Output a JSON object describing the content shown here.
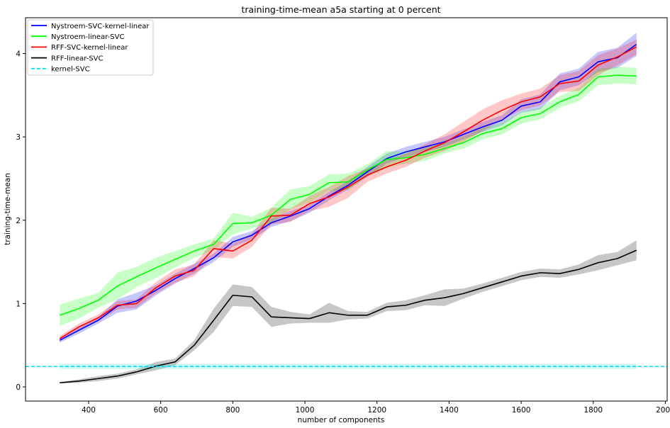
{
  "chart_data": {
    "type": "line",
    "title": "training-time-mean a5a starting at 0 percent",
    "xlabel": "number of components",
    "ylabel": "training-time-mean",
    "xlim": [
      225,
      2005
    ],
    "ylim": [
      -0.17,
      4.43
    ],
    "xticks": [
      400,
      600,
      800,
      1000,
      1200,
      1400,
      1600,
      1800,
      2000
    ],
    "yticks": [
      0,
      1,
      2,
      3,
      4
    ],
    "grid": false,
    "legend_position": "top-left",
    "x": [
      320,
      373,
      427,
      480,
      533,
      587,
      640,
      693,
      747,
      800,
      853,
      907,
      960,
      1013,
      1067,
      1120,
      1173,
      1227,
      1280,
      1333,
      1387,
      1440,
      1493,
      1547,
      1600,
      1653,
      1707,
      1760,
      1813,
      1867,
      1920
    ],
    "series": [
      {
        "name": "Nystroem-SVC-kernel-linear",
        "color": "#0000ff",
        "dashed": false,
        "values": [
          0.56,
          0.68,
          0.8,
          0.97,
          1.03,
          1.16,
          1.3,
          1.42,
          1.55,
          1.74,
          1.82,
          1.97,
          2.05,
          2.14,
          2.29,
          2.42,
          2.58,
          2.74,
          2.82,
          2.88,
          2.94,
          3.03,
          3.12,
          3.2,
          3.37,
          3.42,
          3.66,
          3.72,
          3.9,
          3.95,
          4.11
        ],
        "band": [
          0.03,
          0.04,
          0.04,
          0.08,
          0.1,
          0.06,
          0.06,
          0.06,
          0.05,
          0.06,
          0.05,
          0.05,
          0.06,
          0.05,
          0.05,
          0.05,
          0.06,
          0.06,
          0.06,
          0.06,
          0.06,
          0.06,
          0.06,
          0.06,
          0.08,
          0.09,
          0.1,
          0.1,
          0.12,
          0.12,
          0.14
        ]
      },
      {
        "name": "Nystroem-linear-SVC",
        "color": "#00ff00",
        "dashed": false,
        "values": [
          0.86,
          0.94,
          1.04,
          1.21,
          1.32,
          1.43,
          1.53,
          1.63,
          1.71,
          1.96,
          1.97,
          2.06,
          2.25,
          2.31,
          2.45,
          2.46,
          2.6,
          2.73,
          2.75,
          2.79,
          2.86,
          2.93,
          3.04,
          3.1,
          3.23,
          3.28,
          3.42,
          3.51,
          3.72,
          3.74,
          3.73
        ],
        "band": [
          0.13,
          0.12,
          0.09,
          0.16,
          0.12,
          0.12,
          0.1,
          0.08,
          0.07,
          0.13,
          0.07,
          0.09,
          0.12,
          0.1,
          0.1,
          0.1,
          0.07,
          0.1,
          0.07,
          0.08,
          0.06,
          0.07,
          0.07,
          0.07,
          0.07,
          0.07,
          0.07,
          0.08,
          0.1,
          0.1,
          0.1
        ]
      },
      {
        "name": "RFF-SVC-kernel-linear",
        "color": "#ff0000",
        "dashed": false,
        "values": [
          0.58,
          0.72,
          0.83,
          0.98,
          1.0,
          1.19,
          1.33,
          1.4,
          1.66,
          1.63,
          1.76,
          2.05,
          2.06,
          2.2,
          2.28,
          2.4,
          2.54,
          2.64,
          2.72,
          2.83,
          2.93,
          3.06,
          3.2,
          3.32,
          3.42,
          3.48,
          3.64,
          3.67,
          3.86,
          3.96,
          4.08
        ],
        "band": [
          0.03,
          0.04,
          0.04,
          0.05,
          0.05,
          0.07,
          0.08,
          0.07,
          0.1,
          0.09,
          0.08,
          0.1,
          0.08,
          0.09,
          0.12,
          0.13,
          0.08,
          0.08,
          0.08,
          0.08,
          0.1,
          0.12,
          0.13,
          0.12,
          0.1,
          0.1,
          0.1,
          0.12,
          0.12,
          0.1,
          0.09
        ]
      },
      {
        "name": "RFF-linear-SVC",
        "color": "#000000",
        "dashed": false,
        "values": [
          0.05,
          0.07,
          0.1,
          0.13,
          0.18,
          0.25,
          0.3,
          0.5,
          0.8,
          1.1,
          1.08,
          0.84,
          0.83,
          0.82,
          0.89,
          0.86,
          0.86,
          0.96,
          0.98,
          1.04,
          1.07,
          1.12,
          1.19,
          1.26,
          1.33,
          1.37,
          1.36,
          1.41,
          1.49,
          1.54,
          1.64
        ],
        "band": [
          0.01,
          0.02,
          0.03,
          0.03,
          0.03,
          0.05,
          0.04,
          0.06,
          0.14,
          0.13,
          0.12,
          0.12,
          0.07,
          0.05,
          0.12,
          0.05,
          0.04,
          0.05,
          0.06,
          0.06,
          0.1,
          0.06,
          0.05,
          0.05,
          0.05,
          0.05,
          0.05,
          0.06,
          0.09,
          0.08,
          0.12
        ]
      },
      {
        "name": "kernel-SVC",
        "color": "#00e5ee",
        "dashed": true,
        "values": [
          0.245,
          0.245,
          0.245,
          0.245,
          0.245,
          0.245,
          0.245,
          0.245,
          0.245,
          0.245,
          0.245,
          0.245,
          0.245,
          0.245,
          0.245,
          0.245,
          0.245,
          0.245,
          0.245,
          0.245,
          0.245,
          0.245,
          0.245,
          0.245,
          0.245,
          0.245,
          0.245,
          0.245,
          0.245,
          0.245,
          0.245
        ],
        "band": [
          0.03,
          0.03,
          0.03,
          0.03,
          0.03,
          0.03,
          0.03,
          0.03,
          0.03,
          0.03,
          0.03,
          0.03,
          0.03,
          0.03,
          0.03,
          0.03,
          0.03,
          0.03,
          0.03,
          0.03,
          0.03,
          0.03,
          0.03,
          0.03,
          0.03,
          0.03,
          0.03,
          0.03,
          0.03,
          0.03,
          0.03
        ]
      }
    ]
  }
}
